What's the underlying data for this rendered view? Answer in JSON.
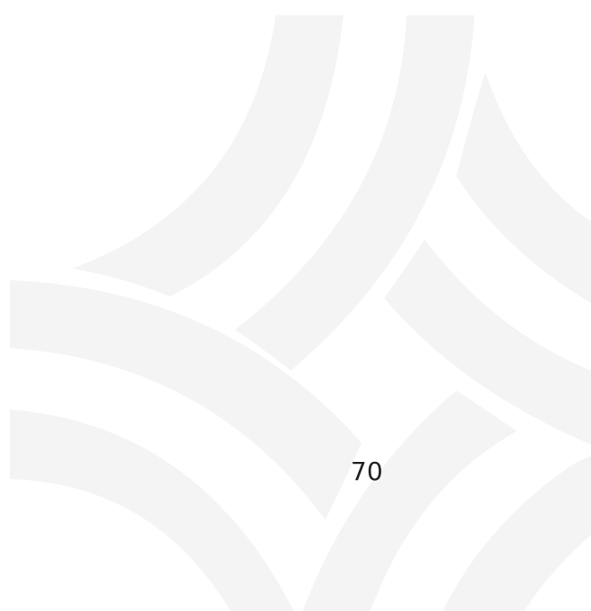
{
  "page_number": "70"
}
